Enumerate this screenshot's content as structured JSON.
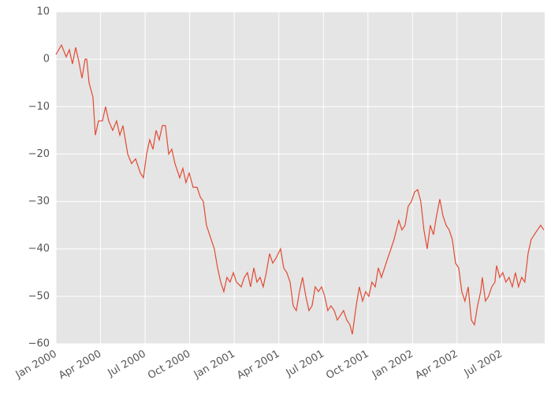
{
  "chart_data": {
    "type": "line",
    "color": "#e24a33",
    "grid": true,
    "background": "#e5e5e5",
    "xlim": [
      0,
      32.9
    ],
    "ylim": [
      -60,
      10
    ],
    "yticks": [
      {
        "value": -60,
        "label": "−60"
      },
      {
        "value": -50,
        "label": "−50"
      },
      {
        "value": -40,
        "label": "−40"
      },
      {
        "value": -30,
        "label": "−30"
      },
      {
        "value": -20,
        "label": "−20"
      },
      {
        "value": -10,
        "label": "−10"
      },
      0,
      10
    ],
    "xticks": [
      {
        "value": 0,
        "label": "Jan 2000"
      },
      {
        "value": 3,
        "label": "Apr 2000"
      },
      {
        "value": 6,
        "label": "Jul 2000"
      },
      {
        "value": 9,
        "label": "Oct 2000"
      },
      {
        "value": 12,
        "label": "Jan 2001"
      },
      {
        "value": 15,
        "label": "Apr 2001"
      },
      {
        "value": 18,
        "label": "Jul 2001"
      },
      {
        "value": 21,
        "label": "Oct 2001"
      },
      {
        "value": 24,
        "label": "Jan 2002"
      },
      {
        "value": 27,
        "label": "Apr 2002"
      },
      {
        "value": 30,
        "label": "Jul 2002"
      }
    ],
    "x": [
      0,
      0.37,
      0.69,
      0.9,
      1.11,
      1.33,
      1.54,
      1.75,
      1.96,
      2.07,
      2.23,
      2.49,
      2.65,
      2.86,
      3.13,
      3.34,
      3.55,
      3.82,
      4.08,
      4.3,
      4.51,
      4.83,
      5.09,
      5.36,
      5.68,
      5.89,
      6.1,
      6.31,
      6.53,
      6.74,
      6.95,
      7.16,
      7.37,
      7.59,
      7.8,
      8.01,
      8.33,
      8.54,
      8.75,
      8.97,
      9.23,
      9.5,
      9.71,
      9.92,
      10.13,
      10.34,
      10.66,
      10.88,
      11.09,
      11.3,
      11.51,
      11.72,
      11.94,
      12.15,
      12.47,
      12.68,
      12.89,
      13.1,
      13.32,
      13.53,
      13.74,
      13.95,
      14.16,
      14.38,
      14.59,
      14.8,
      15.12,
      15.33,
      15.54,
      15.76,
      15.97,
      16.18,
      16.39,
      16.6,
      16.82,
      17.03,
      17.24,
      17.45,
      17.67,
      17.88,
      18.09,
      18.3,
      18.51,
      18.73,
      18.94,
      19.15,
      19.36,
      19.58,
      19.79,
      19.95,
      20.21,
      20.42,
      20.64,
      20.85,
      21.06,
      21.27,
      21.49,
      21.7,
      21.91,
      22.12,
      22.33,
      22.55,
      22.76,
      23.08,
      23.29,
      23.5,
      23.71,
      23.93,
      24.14,
      24.35,
      24.56,
      24.77,
      24.99,
      25.2,
      25.41,
      25.62,
      25.84,
      26.05,
      26.26,
      26.47,
      26.68,
      26.9,
      27.11,
      27.32,
      27.53,
      27.75,
      27.96,
      28.17,
      28.38,
      28.59,
      28.7,
      28.91,
      29.12,
      29.34,
      29.55,
      29.66,
      29.87,
      30.08,
      30.29,
      30.5,
      30.72,
      30.93,
      31.14,
      31.35,
      31.56,
      31.78,
      31.99,
      32.2,
      32.41,
      32.63,
      32.84
    ],
    "values": [
      1,
      3,
      0.5,
      2,
      -1,
      2.5,
      -0.5,
      -4,
      0,
      0,
      -5,
      -8,
      -16,
      -13,
      -13,
      -10,
      -13,
      -15,
      -13,
      -16,
      -14,
      -20,
      -22,
      -21,
      -24,
      -25,
      -20,
      -17,
      -19,
      -15,
      -17,
      -14,
      -14,
      -20,
      -19,
      -22,
      -25,
      -23,
      -26,
      -24,
      -27,
      -27,
      -29,
      -30,
      -35,
      -37,
      -40,
      -44,
      -47,
      -49,
      -46,
      -47,
      -45,
      -47,
      -48,
      -46,
      -45,
      -48,
      -44,
      -47,
      -46,
      -48,
      -45,
      -41,
      -43,
      -42,
      -40,
      -44,
      -45,
      -47,
      -52,
      -53,
      -49,
      -46,
      -50,
      -53,
      -52,
      -48,
      -49,
      -48,
      -50,
      -53,
      -52,
      -53,
      -55,
      -54,
      -53,
      -55,
      -56,
      -58,
      -52,
      -48,
      -51,
      -49,
      -50,
      -47,
      -48,
      -44,
      -46,
      -44,
      -42,
      -40,
      -38,
      -34,
      -36,
      -35,
      -31,
      -30,
      -28,
      -27.5,
      -30,
      -36,
      -40,
      -35,
      -37,
      -33,
      -29.5,
      -33,
      -35,
      -36,
      -38,
      -43,
      -44,
      -49,
      -51,
      -48,
      -55,
      -56,
      -52,
      -49,
      -46,
      -51,
      -50,
      -48,
      -47,
      -43.5,
      -46,
      -45,
      -47,
      -46,
      -48,
      -45,
      -48,
      -46,
      -47,
      -41,
      -38,
      -37,
      -36,
      -35,
      -36
    ]
  }
}
